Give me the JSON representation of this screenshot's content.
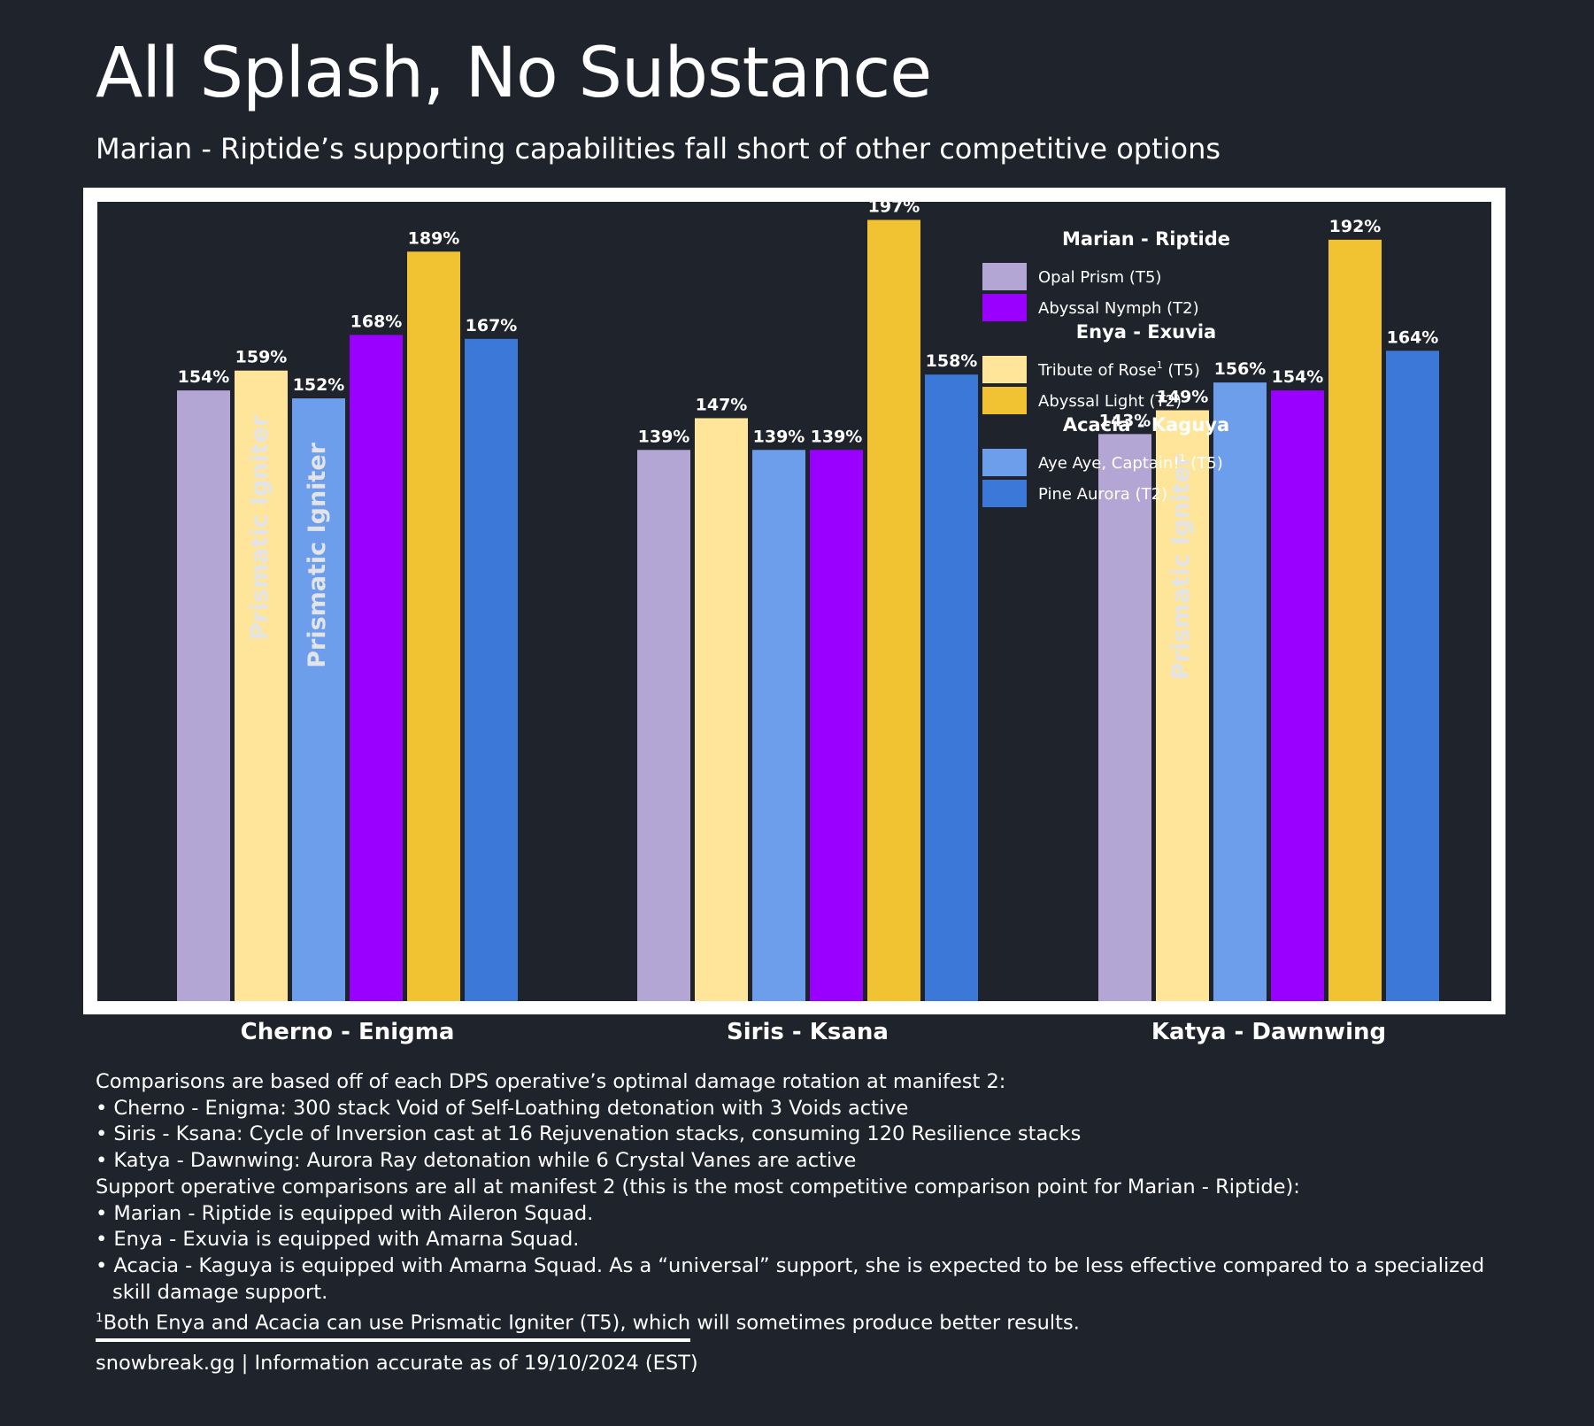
{
  "title": "All Splash, No Substance",
  "subtitle": "Marian - Riptide’s supporting capabilities fall short of other competitive options",
  "colors": {
    "background": "#1f232b",
    "frame": "#ffffff",
    "opal_prism": "#b3a6d5",
    "abyssal_nymph": "#9900ff",
    "tribute_of_rose": "#ffe599",
    "abyssal_light": "#f1c232",
    "aye_aye_captain": "#6d9eeb",
    "pine_aurora": "#3c78d8",
    "bar_overlay_text": "#e3e4e8"
  },
  "chart_data": {
    "type": "bar",
    "title": "All Splash, No Substance",
    "subtitle": "Marian - Riptide’s supporting capabilities fall short of other competitive options",
    "categories": [
      "Cherno - Enigma",
      "Siris - Ksana",
      "Katya - Dawnwing"
    ],
    "ylim": [
      0,
      200
    ],
    "grid": false,
    "value_suffix": "%",
    "legend_position": "top-right",
    "legend_groups": [
      {
        "title": "Marian - Riptide",
        "items": [
          {
            "label": "Opal Prism (T5)",
            "color": "#b3a6d5"
          },
          {
            "label": "Abyssal Nymph (T2)",
            "color": "#9900ff"
          }
        ]
      },
      {
        "title": "Enya - Exuvia",
        "items": [
          {
            "label": "Tribute of Rose",
            "sup": "1",
            "suffix": " (T5)",
            "color": "#ffe599"
          },
          {
            "label": "Abyssal Light (T2)",
            "color": "#f1c232"
          }
        ]
      },
      {
        "title": "Acacia - Kaguya",
        "items": [
          {
            "label": "Aye Aye, Captain!",
            "sup": "1",
            "suffix": " (T5)",
            "color": "#6d9eeb"
          },
          {
            "label": "Pine Aurora (T2)",
            "color": "#3c78d8"
          }
        ]
      }
    ],
    "bar_groups": [
      {
        "category": "Cherno - Enigma",
        "bars": [
          {
            "series": "Opal Prism (T5)",
            "value": 154,
            "label": "154%",
            "color": "#b3a6d5"
          },
          {
            "series": "Tribute of Rose (T5)",
            "value": 159,
            "label": "159%",
            "color": "#ffe599",
            "overlay": "Prismatic Igniter"
          },
          {
            "series": "Aye Aye, Captain! (T5)",
            "value": 152,
            "label": "152%",
            "color": "#6d9eeb",
            "overlay": "Prismatic Igniter"
          },
          {
            "series": "Abyssal Nymph (T2)",
            "value": 168,
            "label": "168%",
            "color": "#9900ff"
          },
          {
            "series": "Abyssal Light (T2)",
            "value": 189,
            "label": "189%",
            "color": "#f1c232"
          },
          {
            "series": "Pine Aurora (T2)",
            "value": 167,
            "label": "167%",
            "color": "#3c78d8"
          }
        ]
      },
      {
        "category": "Siris - Ksana",
        "bars": [
          {
            "series": "Opal Prism (T5)",
            "value": 139,
            "label": "139%",
            "color": "#b3a6d5"
          },
          {
            "series": "Tribute of Rose (T5)",
            "value": 147,
            "label": "147%",
            "color": "#ffe599"
          },
          {
            "series": "Aye Aye, Captain! (T5)",
            "value": 139,
            "label": "139%",
            "color": "#6d9eeb"
          },
          {
            "series": "Abyssal Nymph (T2)",
            "value": 139,
            "label": "139%",
            "color": "#9900ff"
          },
          {
            "series": "Abyssal Light (T2)",
            "value": 197,
            "label": "197%",
            "color": "#f1c232"
          },
          {
            "series": "Pine Aurora (T2)",
            "value": 158,
            "label": "158%",
            "color": "#3c78d8"
          }
        ]
      },
      {
        "category": "Katya - Dawnwing",
        "bars": [
          {
            "series": "Opal Prism (T5)",
            "value": 143,
            "label": "143%",
            "color": "#b3a6d5"
          },
          {
            "series": "Tribute of Rose (T5)",
            "value": 149,
            "label": "149%",
            "color": "#ffe599",
            "overlay": "Prismatic Igniter"
          },
          {
            "series": "Aye Aye, Captain! (T5)",
            "value": 156,
            "label": "156%",
            "color": "#6d9eeb"
          },
          {
            "series": "Abyssal Nymph (T2)",
            "value": 154,
            "label": "154%",
            "color": "#9900ff"
          },
          {
            "series": "Abyssal Light (T2)",
            "value": 192,
            "label": "192%",
            "color": "#f1c232"
          },
          {
            "series": "Pine Aurora (T2)",
            "value": 164,
            "label": "164%",
            "color": "#3c78d8"
          }
        ]
      }
    ]
  },
  "notes": {
    "intro": "Comparisons are based off of each DPS operative’s optimal damage rotation at manifest 2:",
    "dps": [
      "• Cherno - Enigma: 300 stack Void of Self-Loathing detonation with 3 Voids active",
      "• Siris - Ksana: Cycle of Inversion cast at 16 Rejuvenation stacks, consuming 120 Resilience stacks",
      "• Katya - Dawnwing: Aurora Ray detonation while 6 Crystal Vanes are active"
    ],
    "support_intro": "Support operative comparisons are all at manifest 2 (this is the most competitive comparison point for Marian - Riptide):",
    "support": [
      "• Marian - Riptide is equipped with Aileron Squad.",
      "• Enya - Exuvia is equipped with Amarna Squad.",
      "• Acacia - Kaguya is equipped with Amarna Squad. As a “universal” support, she is expected to be less effective compared to a specialized skill damage support."
    ],
    "footnote_mark": "1",
    "footnote": "Both Enya and Acacia can use Prismatic Igniter (T5), which will sometimes produce better results."
  },
  "source": "snowbreak.gg | Information accurate as of 19/10/2024 (EST)"
}
